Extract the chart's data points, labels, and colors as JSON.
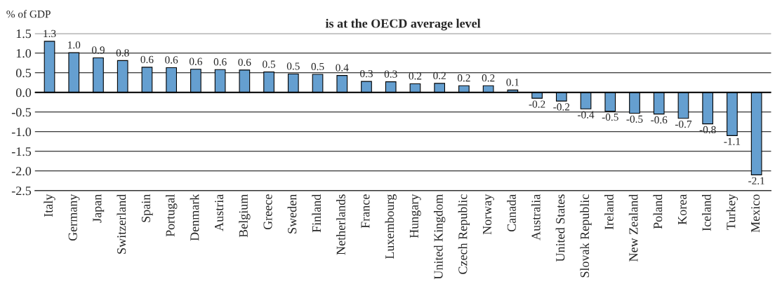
{
  "chart_data": {
    "type": "bar",
    "title": "is at the OECD average level",
    "ylabel": "% of GDP",
    "categories": [
      "Italy",
      "Germany",
      "Japan",
      "Switzerland",
      "Spain",
      "Portugal",
      "Denmark",
      "Austria",
      "Belgium",
      "Greece",
      "Sweden",
      "Finland",
      "Netherlands",
      "France",
      "Luxembourg",
      "Hungary",
      "United Kingdom",
      "Czech Republic",
      "Norway",
      "Canada",
      "Australia",
      "United States",
      "Slovak Republic",
      "Ireland",
      "New Zealand",
      "Poland",
      "Korea",
      "Iceland",
      "Turkey",
      "Mexico"
    ],
    "values": [
      1.3,
      1.01,
      0.88,
      0.81,
      0.64,
      0.63,
      0.59,
      0.58,
      0.57,
      0.52,
      0.47,
      0.46,
      0.43,
      0.28,
      0.27,
      0.22,
      0.23,
      0.17,
      0.17,
      0.06,
      -0.15,
      -0.22,
      -0.42,
      -0.48,
      -0.53,
      -0.55,
      -0.66,
      -0.8,
      -1.1,
      -2.1
    ],
    "value_labels": [
      "1.3",
      "1.0",
      "0.9",
      "0.8",
      "0.6",
      "0.6",
      "0.6",
      "0.6",
      "0.6",
      "0.5",
      "0.5",
      "0.5",
      "0.4",
      "0.3",
      "0.3",
      "0.2",
      "0.2",
      "0.2",
      "0.2",
      "0.1",
      "-0.2",
      "-0.2",
      "-0.4",
      "-0.5",
      "-0.5",
      "-0.6",
      "-0.7",
      "-0.8",
      "-1.1",
      "-2.1"
    ],
    "color": "#659fd0",
    "ylim": [
      -2.5,
      1.5
    ],
    "yticks": [
      {
        "value": -2.5,
        "label": "-2.5"
      },
      {
        "value": -2.0,
        "label": "-2.0"
      },
      {
        "value": -1.5,
        "label": "-1.5"
      },
      {
        "value": -1.0,
        "label": "-1.0"
      },
      {
        "value": -0.5,
        "label": "-0.5"
      },
      {
        "value": 0.0,
        "label": "0.0"
      },
      {
        "value": 0.5,
        "label": "0.5"
      },
      {
        "value": 1.0,
        "label": "1.0"
      },
      {
        "value": 1.5,
        "label": "1.5"
      }
    ],
    "grid": "y",
    "legend": false
  }
}
